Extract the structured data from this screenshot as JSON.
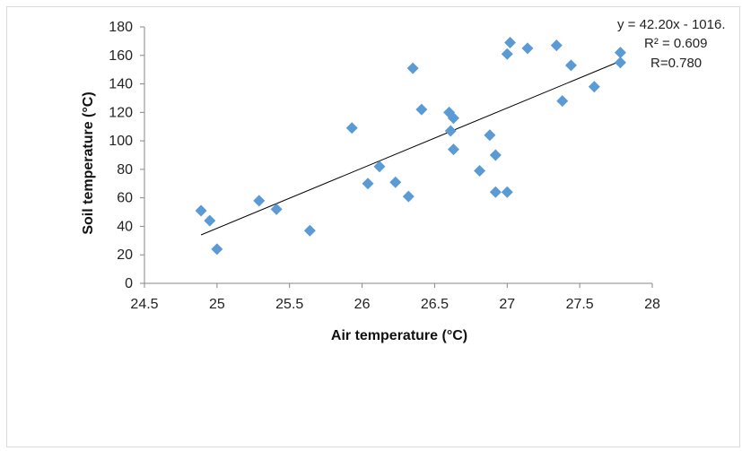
{
  "chart_data": {
    "type": "scatter",
    "title": "",
    "xlabel": "Air temperature (°C)",
    "ylabel": "Soil temperature (°C)",
    "xlim": [
      24.5,
      28
    ],
    "ylim": [
      0,
      180
    ],
    "xticks": [
      "24.5",
      "25",
      "25.5",
      "26",
      "26.5",
      "27",
      "27.5",
      "28"
    ],
    "yticks": [
      "0",
      "20",
      "40",
      "60",
      "80",
      "100",
      "120",
      "140",
      "160",
      "180"
    ],
    "grid": false,
    "marker": "diamond",
    "point_color": "#5B9BD5",
    "trendline_color": "#000000",
    "points": [
      {
        "x": 24.89,
        "y": 51
      },
      {
        "x": 24.95,
        "y": 44
      },
      {
        "x": 25.0,
        "y": 24
      },
      {
        "x": 25.29,
        "y": 58
      },
      {
        "x": 25.41,
        "y": 52
      },
      {
        "x": 25.64,
        "y": 37
      },
      {
        "x": 25.93,
        "y": 109
      },
      {
        "x": 26.04,
        "y": 70
      },
      {
        "x": 26.12,
        "y": 82
      },
      {
        "x": 26.23,
        "y": 71
      },
      {
        "x": 26.32,
        "y": 61
      },
      {
        "x": 26.35,
        "y": 151
      },
      {
        "x": 26.41,
        "y": 122
      },
      {
        "x": 26.6,
        "y": 120
      },
      {
        "x": 26.61,
        "y": 107
      },
      {
        "x": 26.63,
        "y": 116
      },
      {
        "x": 26.63,
        "y": 94
      },
      {
        "x": 26.81,
        "y": 79
      },
      {
        "x": 26.88,
        "y": 104
      },
      {
        "x": 26.92,
        "y": 90
      },
      {
        "x": 26.92,
        "y": 64
      },
      {
        "x": 27.0,
        "y": 64
      },
      {
        "x": 27.0,
        "y": 161
      },
      {
        "x": 27.02,
        "y": 169
      },
      {
        "x": 27.14,
        "y": 165
      },
      {
        "x": 27.34,
        "y": 167
      },
      {
        "x": 27.38,
        "y": 128
      },
      {
        "x": 27.44,
        "y": 153
      },
      {
        "x": 27.6,
        "y": 138
      },
      {
        "x": 27.78,
        "y": 162
      },
      {
        "x": 27.78,
        "y": 155
      }
    ],
    "trendline": {
      "x": [
        24.89,
        27.78
      ],
      "y": [
        34,
        156
      ]
    },
    "annotations": [
      "y = 42.20x - 1016.",
      "R² = 0.609",
      "R=0.780"
    ]
  }
}
